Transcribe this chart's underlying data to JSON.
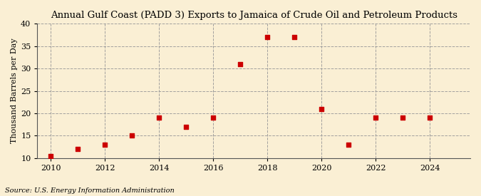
{
  "title": "Annual Gulf Coast (PADD 3) Exports to Jamaica of Crude Oil and Petroleum Products",
  "ylabel": "Thousand Barrels per Day",
  "source": "Source: U.S. Energy Information Administration",
  "background_color": "#faefd4",
  "years": [
    2010,
    2011,
    2012,
    2013,
    2014,
    2015,
    2016,
    2017,
    2018,
    2019,
    2020,
    2021,
    2022,
    2023,
    2024
  ],
  "values": [
    10.5,
    12,
    13,
    15,
    19,
    17,
    19,
    31,
    37,
    37,
    21,
    13,
    19,
    19,
    19
  ],
  "marker_color": "#cc0000",
  "ylim": [
    10,
    40
  ],
  "yticks": [
    10,
    15,
    20,
    25,
    30,
    35,
    40
  ],
  "xlim": [
    2009.5,
    2025.5
  ],
  "xticks": [
    2010,
    2012,
    2014,
    2016,
    2018,
    2020,
    2022,
    2024
  ],
  "title_fontsize": 9.5,
  "label_fontsize": 8,
  "tick_fontsize": 8,
  "source_fontsize": 7
}
